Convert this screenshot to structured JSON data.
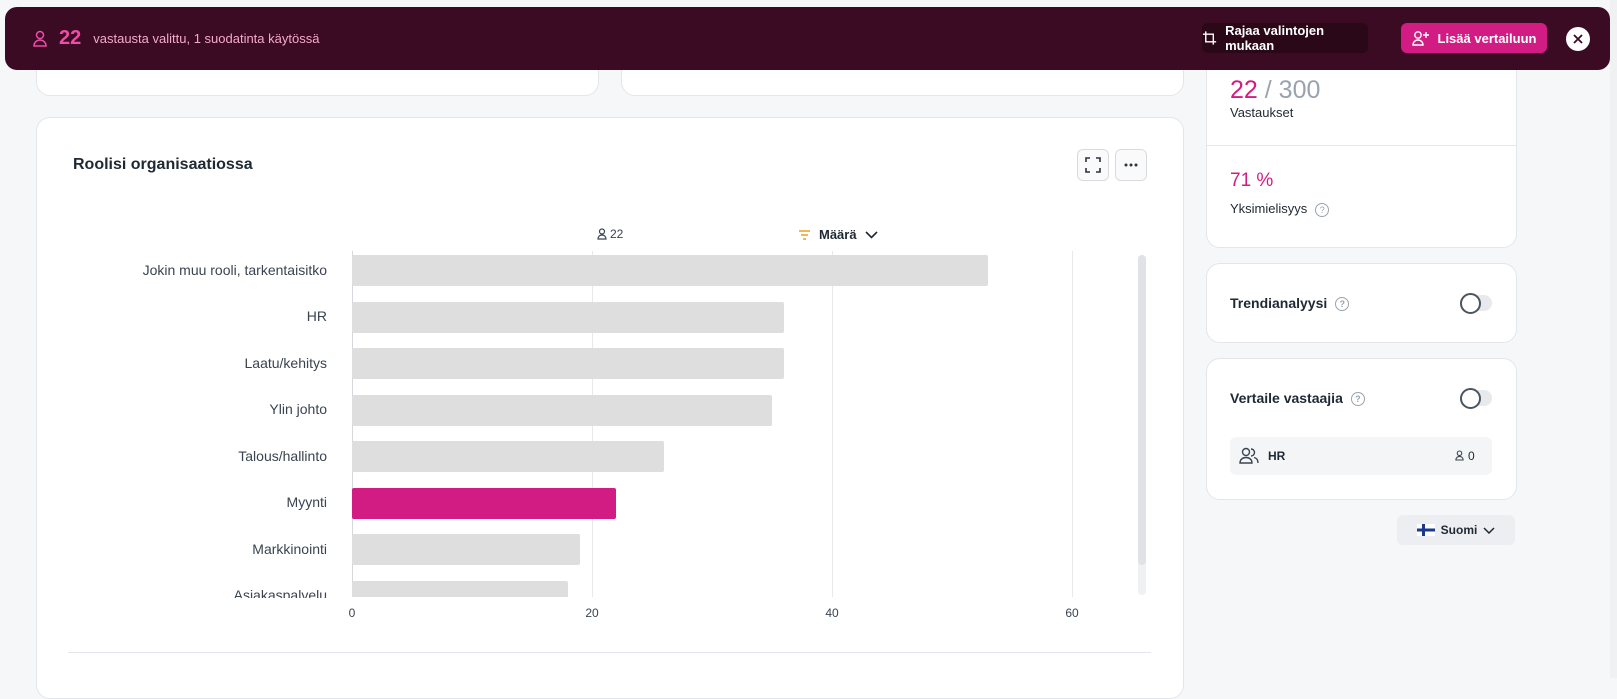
{
  "banner": {
    "count": "22",
    "text": "vastausta valittu, 1 suodatinta käytössä",
    "crop_label": "Rajaa valintojen mukaan",
    "compare_label": "Lisää vertailuun"
  },
  "chart_card": {
    "title": "Roolisi organisaatiossa",
    "respondents": "22",
    "sort_label": "Määrä"
  },
  "chart_data": {
    "type": "bar",
    "orientation": "horizontal",
    "categories": [
      "Jokin muu rooli, tarkentaisitko",
      "HR",
      "Laatu/kehitys",
      "Ylin johto",
      "Talous/hallinto",
      "Myynti",
      "Markkinointi",
      "Asiakaspalvelu"
    ],
    "values": [
      53,
      36,
      36,
      35,
      26,
      22,
      19,
      18
    ],
    "highlight": "Myynti",
    "xticks": [
      "0",
      "20",
      "40",
      "60"
    ],
    "xlim": [
      0,
      65
    ],
    "grid": true,
    "colors": {
      "bar": "#dedede",
      "highlight": "#d21c84"
    }
  },
  "stats": {
    "selected": "22",
    "separator": "/",
    "total": "300",
    "responses_label": "Vastaukset",
    "consensus_value": "71 %",
    "consensus_label": "Yksimielisyys"
  },
  "trend": {
    "label": "Trendianalyysi"
  },
  "compare": {
    "label": "Vertaile vastaajia",
    "item_label": "HR",
    "item_count": "0"
  },
  "language": {
    "label": "Suomi"
  },
  "colors": {
    "accent": "#d21c84",
    "banner_bg": "#3a0b22"
  }
}
